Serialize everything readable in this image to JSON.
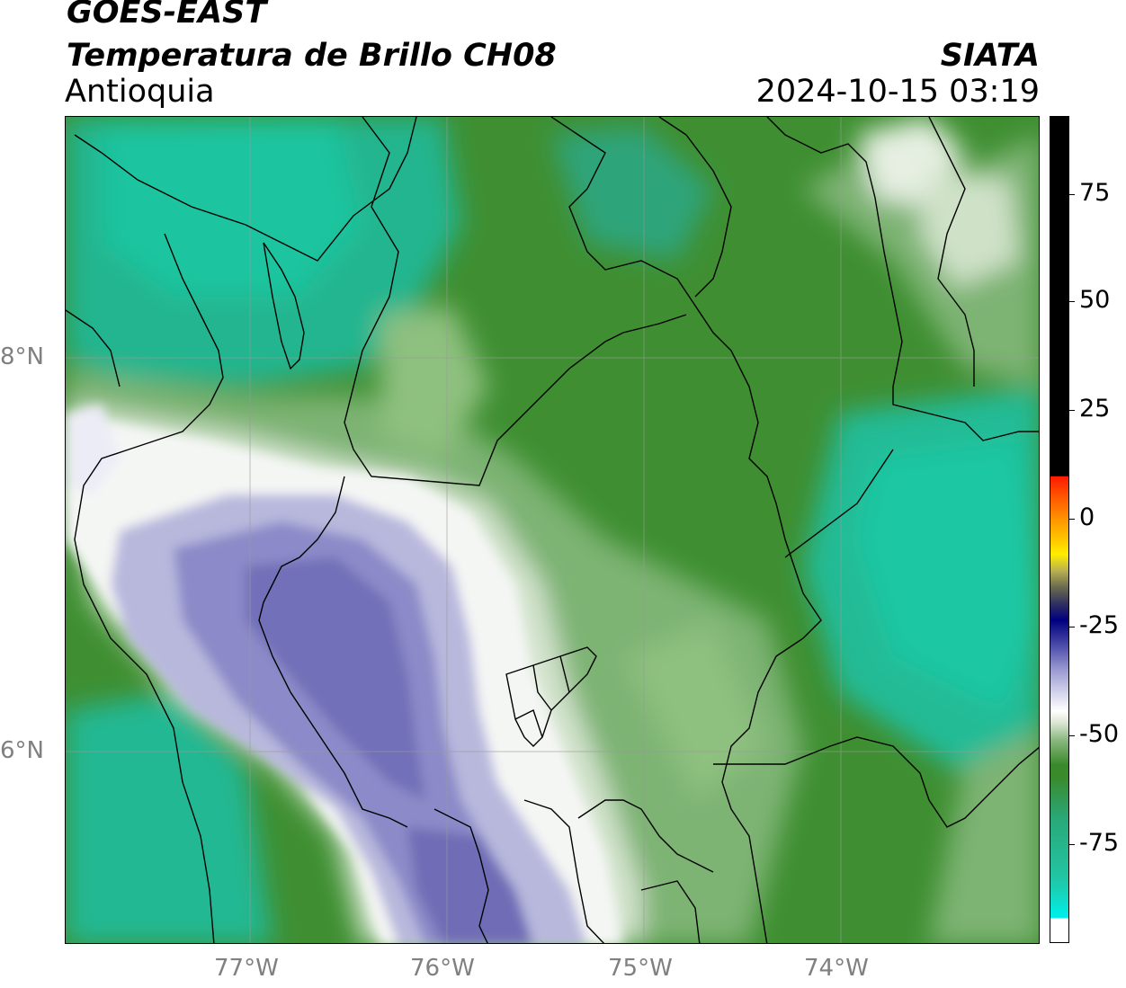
{
  "header": {
    "satellite": "GOES-EAST",
    "product": "Temperatura de Brillo CH08",
    "region": "Antioquia",
    "organization": "SIATA",
    "datetime": "2024-10-15 03:19"
  },
  "map": {
    "latitude_labels": [
      "8°N",
      "6°N"
    ],
    "longitude_labels": [
      "77°W",
      "76°W",
      "75°W",
      "74°W"
    ],
    "gridlines": true,
    "colors": {
      "warm_green_teal": "#22c4a0",
      "dark_green": "#3a8a2c",
      "light_green": "#8fbf80",
      "white": "#ffffff",
      "cold_purple": "#6e6ab8",
      "boundary": "#000000"
    }
  },
  "colorbar": {
    "ticks": [
      "75",
      "50",
      "25",
      "0",
      "-25",
      "-50",
      "-75"
    ],
    "colors": {
      "black_band": "#000000",
      "red": "#ff2200",
      "orange": "#ff9900",
      "yellow": "#ffee00",
      "olive": "#8a8a3a",
      "navy": "#000080",
      "lavender": "#8a8ac8",
      "white": "#ffffff",
      "green": "#3a8a2c",
      "teal": "#1fc4a2",
      "cyan": "#00e8e0"
    }
  }
}
